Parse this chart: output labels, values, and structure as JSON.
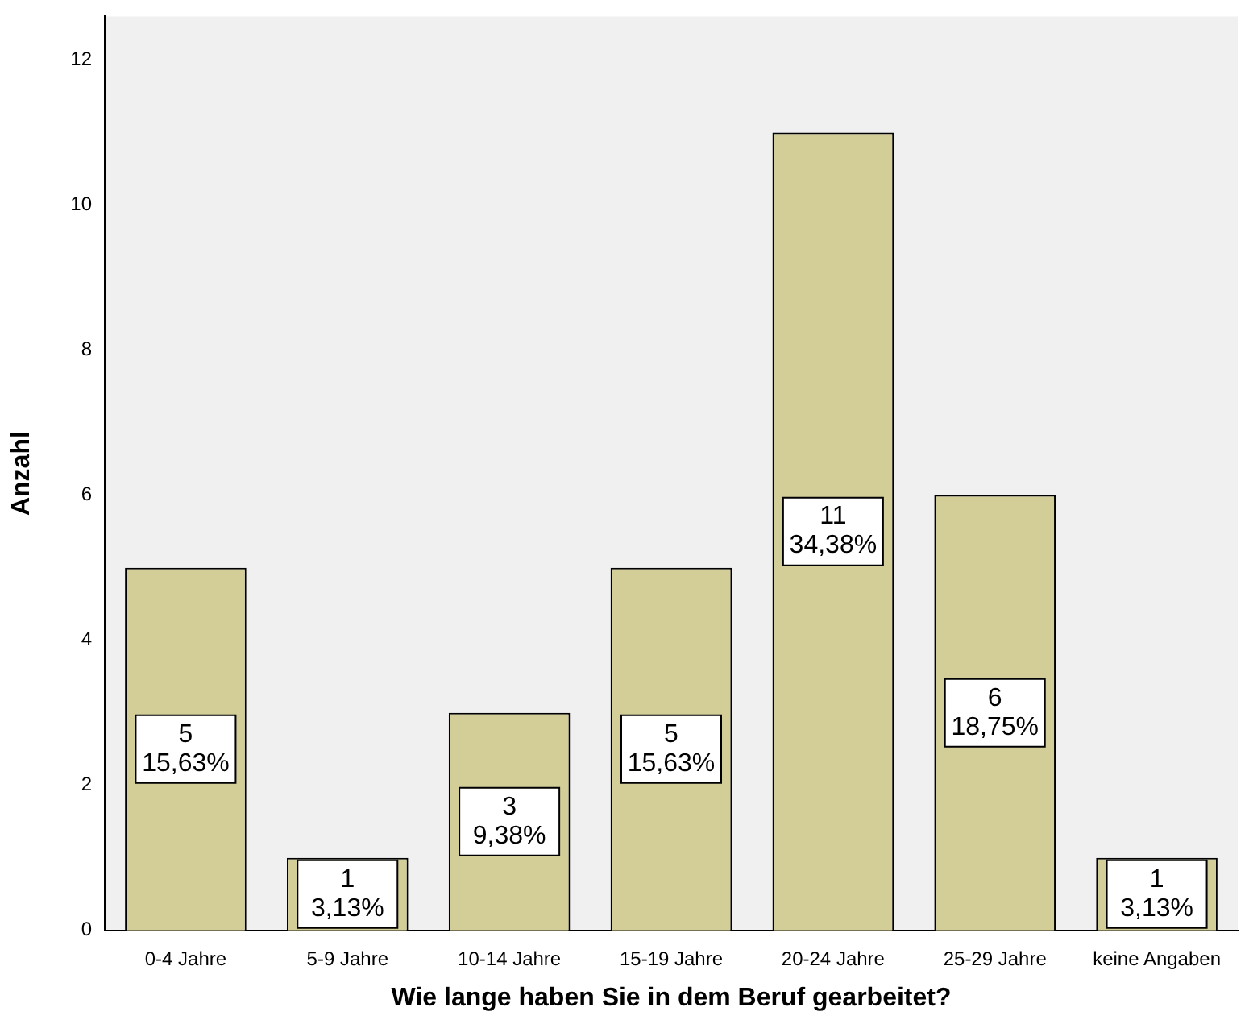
{
  "chart_data": {
    "type": "bar",
    "xlabel": "Wie lange haben Sie in dem Beruf gearbeitet?",
    "ylabel": "Anzahl",
    "categories": [
      "0-4 Jahre",
      "5-9 Jahre",
      "10-14 Jahre",
      "15-19 Jahre",
      "20-24 Jahre",
      "25-29 Jahre",
      "keine Angaben"
    ],
    "values": [
      5,
      1,
      3,
      5,
      11,
      6,
      1
    ],
    "value_labels": [
      "5\n15,63%",
      "1\n3,13%",
      "3\n9,38%",
      "5\n15,63%",
      "11\n34,38%",
      "6\n18,75%",
      "1\n3,13%"
    ],
    "color": "#d3ce98",
    "ylim": [
      0,
      12.6
    ],
    "yticks": [
      0,
      2,
      4,
      6,
      8,
      10,
      12
    ]
  }
}
